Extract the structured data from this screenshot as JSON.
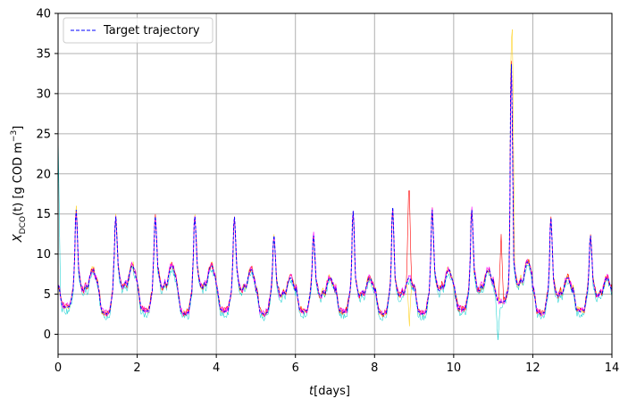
{
  "chart_data": {
    "type": "line",
    "title": "",
    "xlabel_italic": "t",
    "xlabel_rest": "[days]",
    "ylabel_main": "X",
    "ylabel_sub": "DCO",
    "ylabel_arg": "(t)",
    "ylabel_units": "[g COD m",
    "ylabel_units_sup": "−3",
    "ylabel_units_end": "]",
    "xlim": [
      0,
      14
    ],
    "ylim": [
      -2.5,
      40
    ],
    "xticks": [
      0,
      2,
      4,
      6,
      8,
      10,
      12,
      14
    ],
    "yticks": [
      0,
      5,
      10,
      15,
      20,
      25,
      30,
      35,
      40
    ],
    "grid": true,
    "legend": {
      "placement": "top-left",
      "entries": [
        {
          "label": "Target trajectory",
          "color": "#0000ff",
          "style": "dashed"
        }
      ]
    },
    "day_template": {
      "t": [
        0,
        0.1,
        0.2,
        0.3,
        0.38,
        0.42,
        0.45,
        0.48,
        0.52,
        0.56,
        0.6,
        0.65,
        0.7,
        0.75,
        0.8,
        0.85,
        0.9,
        0.95,
        1.0
      ],
      "v": [
        6.5,
        3.5,
        3.2,
        3.4,
        5.5,
        10,
        15.5,
        13,
        8.5,
        7,
        6,
        5.7,
        6.5,
        6,
        7.5,
        8.5,
        8.5,
        7.5,
        6.5
      ]
    },
    "day_peaks": [
      16.5,
      15.5,
      15.5,
      15.5,
      15.5,
      13,
      13,
      16.5,
      17,
      16.5,
      16.5,
      37,
      15.5,
      13
    ],
    "day_mins": [
      3.3,
      2.5,
      2.8,
      2.5,
      2.8,
      2.5,
      2.8,
      2.7,
      2.5,
      2.5,
      3,
      4,
      2.5,
      2.8
    ],
    "day_midlevels": [
      8,
      8.5,
      8.5,
      8.5,
      8,
      7,
      7,
      7,
      7,
      8,
      8,
      9,
      7,
      7
    ],
    "series": [
      {
        "name": "Target trajectory",
        "color": "#0000ff",
        "style": "dashed",
        "width": 1.0
      },
      {
        "color": "#ff0000",
        "style": "solid",
        "width": 0.6
      },
      {
        "color": "#ff00ff",
        "style": "solid",
        "width": 0.6
      },
      {
        "color": "#00cccc",
        "style": "solid",
        "width": 0.5
      },
      {
        "color": "#ffcc00",
        "style": "solid",
        "width": 0.5
      }
    ],
    "notable_points": [
      {
        "t": 0.0,
        "v": 25.5,
        "series_color": "#00cccc"
      },
      {
        "t": 8.87,
        "v": 20,
        "series_color": "#ff0000"
      },
      {
        "t": 8.88,
        "v": 1,
        "series_color": "#ffcc00"
      },
      {
        "t": 11.12,
        "v": -0.7,
        "series_color": "#00cccc"
      },
      {
        "t": 11.2,
        "v": 12.5,
        "series_color": "#ff0000"
      },
      {
        "t": 11.48,
        "v": 38,
        "series_color": "#ffcc00"
      }
    ]
  }
}
